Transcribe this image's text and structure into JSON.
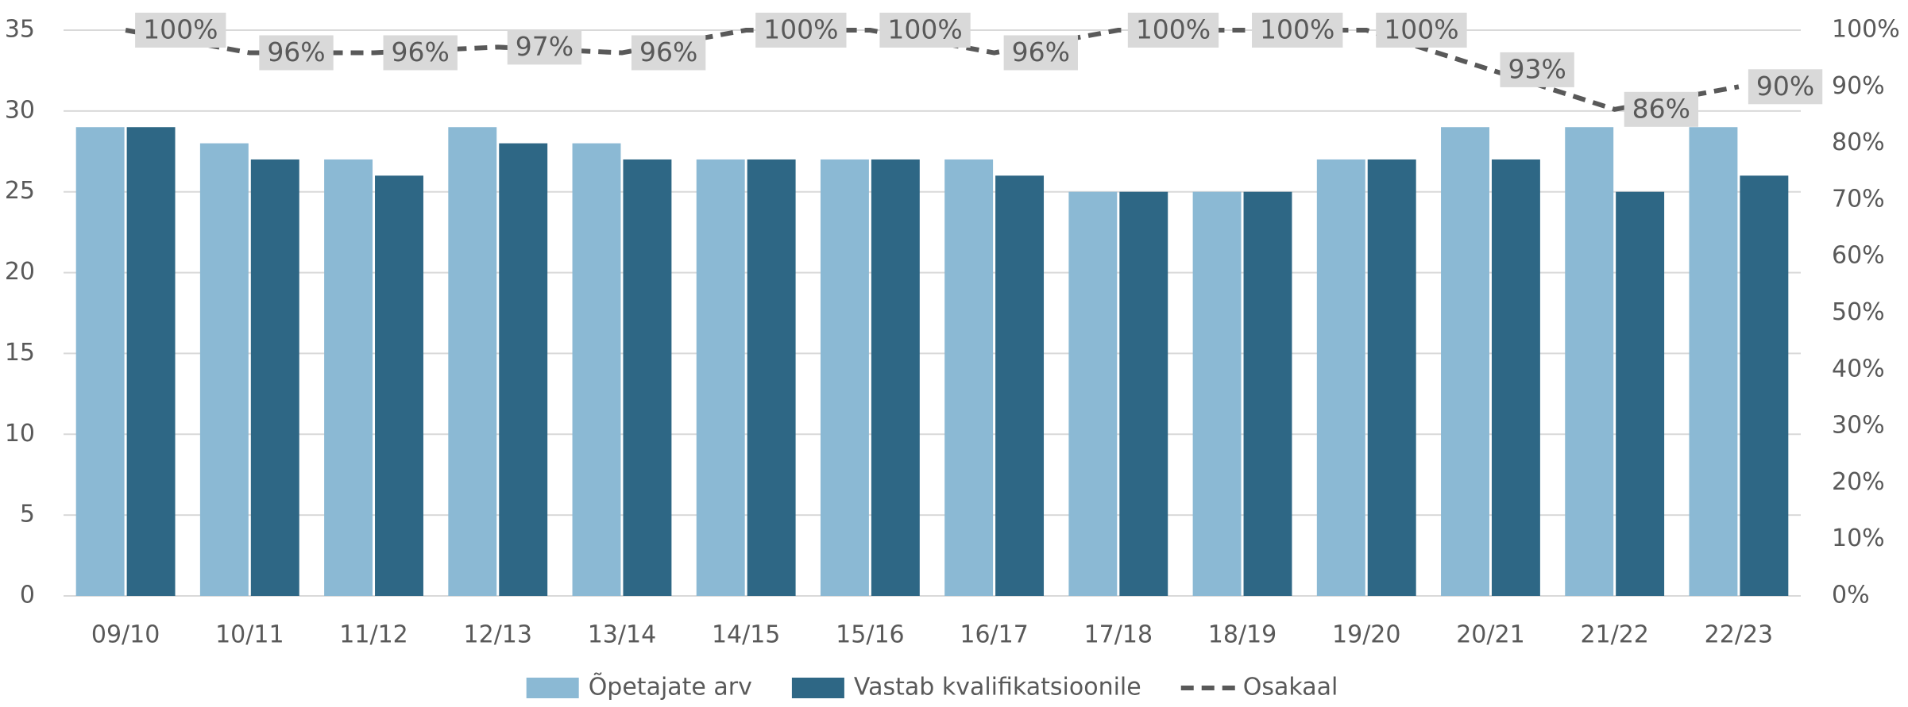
{
  "chart_data": {
    "type": "bar",
    "categories": [
      "09/10",
      "10/11",
      "11/12",
      "12/13",
      "13/14",
      "14/15",
      "15/16",
      "16/17",
      "17/18",
      "18/19",
      "19/20",
      "20/21",
      "21/22",
      "22/23"
    ],
    "series": [
      {
        "name": "Õpetajate arv",
        "color": "#8bb9d4",
        "values": [
          29,
          28,
          27,
          29,
          28,
          27,
          27,
          27,
          25,
          25,
          27,
          29,
          29,
          29
        ]
      },
      {
        "name": "Vastab kvalifikatsioonile",
        "color": "#2e6785",
        "values": [
          29,
          27,
          26,
          28,
          27,
          27,
          27,
          26,
          25,
          25,
          27,
          27,
          25,
          26
        ]
      },
      {
        "name": "Osakaal",
        "color": "#595959",
        "type": "line",
        "axis": "y2",
        "values": [
          100,
          96,
          96,
          97,
          96,
          100,
          100,
          96,
          100,
          100,
          100,
          93,
          86,
          90
        ],
        "value_labels": [
          "100%",
          "96%",
          "96%",
          "97%",
          "96%",
          "100%",
          "100%",
          "96%",
          "100%",
          "100%",
          "100%",
          "93%",
          "86%",
          "90%"
        ]
      }
    ],
    "ylim": [
      0,
      35
    ],
    "yticks": [
      0,
      5,
      10,
      15,
      20,
      25,
      30,
      35
    ],
    "y2lim": [
      0,
      100
    ],
    "y2ticks": [
      {
        "value": 0,
        "label": "0%"
      },
      {
        "value": 10,
        "label": "10%"
      },
      {
        "value": 20,
        "label": "20%"
      },
      {
        "value": 30,
        "label": "30%"
      },
      {
        "value": 40,
        "label": "40%"
      },
      {
        "value": 50,
        "label": "50%"
      },
      {
        "value": 60,
        "label": "60%"
      },
      {
        "value": 70,
        "label": "70%"
      },
      {
        "value": 80,
        "label": "80%"
      },
      {
        "value": 90,
        "label": "90%"
      },
      {
        "value": 100,
        "label": "100%"
      }
    ],
    "grid": true,
    "legend": "bottom"
  }
}
